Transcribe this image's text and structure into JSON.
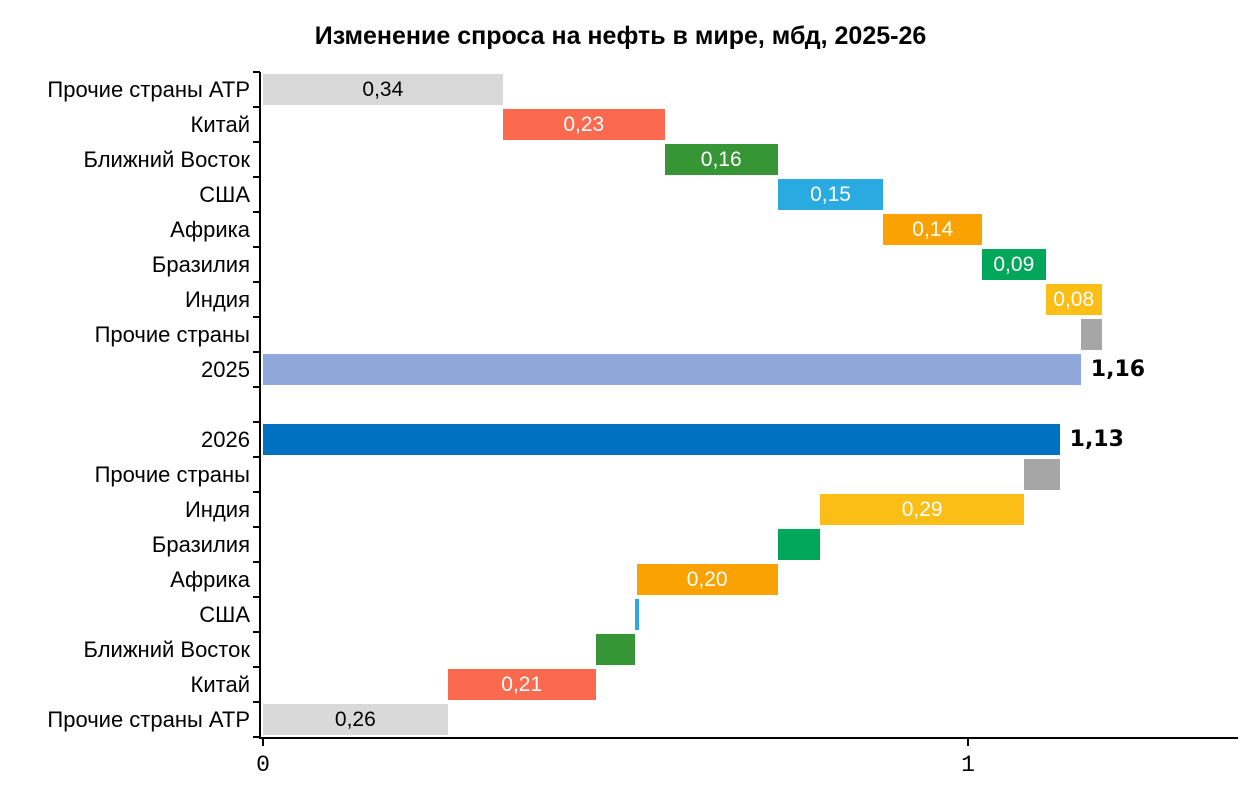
{
  "chart_data": {
    "type": "bar",
    "subtype": "horizontal-waterfall",
    "title": "Изменение спроса на нефть в мире, мбд, 2025-26",
    "units": "мбд",
    "xlim": [
      0,
      1.39
    ],
    "x_ticks": [
      0,
      1
    ],
    "x_tick_labels": [
      "0",
      "1"
    ],
    "grid": false,
    "legend": false,
    "sections": [
      "2025",
      "2026"
    ],
    "colors": {
      "other_apac": "#D9D9D9",
      "china": "#FB6A4F",
      "middle_east": "#369636",
      "usa": "#29ABE2",
      "africa": "#F9A201",
      "brazil": "#00A659",
      "india": "#FBBE17",
      "other_countries": "#A6A6A6",
      "total_2025": "#8FA8DC",
      "total_2026": "#0070C0",
      "axis": "#000000"
    },
    "rows": [
      {
        "name": "other-apac-2025",
        "label": "Прочие страны АТР",
        "start": 0,
        "end": 0.34,
        "value": 0.34,
        "display": "0,34",
        "color": "#D9D9D9",
        "text_color": "#000000"
      },
      {
        "name": "china-2025",
        "label": "Китай",
        "start": 0.34,
        "end": 0.57,
        "value": 0.23,
        "display": "0,23",
        "color": "#FB6A4F",
        "text_color": "#FFFFFF"
      },
      {
        "name": "middle-east-2025",
        "label": "Ближний Восток",
        "start": 0.57,
        "end": 0.73,
        "value": 0.16,
        "display": "0,16",
        "color": "#369636",
        "text_color": "#FFFFFF"
      },
      {
        "name": "usa-2025",
        "label": "США",
        "start": 0.73,
        "end": 0.88,
        "value": 0.15,
        "display": "0,15",
        "color": "#29ABE2",
        "text_color": "#FFFFFF"
      },
      {
        "name": "africa-2025",
        "label": "Африка",
        "start": 0.88,
        "end": 1.02,
        "value": 0.14,
        "display": "0,14",
        "color": "#F9A201",
        "text_color": "#FFFFFF"
      },
      {
        "name": "brazil-2025",
        "label": "Бразилия",
        "start": 1.02,
        "end": 1.11,
        "value": 0.09,
        "display": "0,09",
        "color": "#00A659",
        "text_color": "#FFFFFF"
      },
      {
        "name": "india-2025",
        "label": "Индия",
        "start": 1.11,
        "end": 1.19,
        "value": 0.08,
        "display": "0,08",
        "color": "#FBBE17",
        "text_color": "#FFFFFF"
      },
      {
        "name": "other-countries-2025",
        "label": "Прочие страны",
        "start": 1.16,
        "end": 1.19,
        "value": -0.03,
        "display": "",
        "color": "#A6A6A6",
        "text_color": "#FFFFFF"
      },
      {
        "name": "total-2025",
        "label": "2025",
        "start": 0,
        "end": 1.16,
        "value": 1.16,
        "display": "1,16",
        "color": "#8FA8DC",
        "total": true
      },
      {
        "name": "spacer",
        "label": "",
        "spacer": true
      },
      {
        "name": "total-2026",
        "label": "2026",
        "start": 0,
        "end": 1.13,
        "value": 1.13,
        "display": "1,13",
        "color": "#0070C0",
        "total": true
      },
      {
        "name": "other-countries-2026",
        "label": "Прочие страны",
        "start": 1.08,
        "end": 1.13,
        "value": 0.05,
        "display": "",
        "color": "#A6A6A6",
        "text_color": "#FFFFFF"
      },
      {
        "name": "india-2026",
        "label": "Индия",
        "start": 0.79,
        "end": 1.08,
        "value": 0.29,
        "display": "0,29",
        "color": "#FBBE17",
        "text_color": "#FFFFFF"
      },
      {
        "name": "brazil-2026",
        "label": "Бразилия",
        "start": 0.73,
        "end": 0.79,
        "value": 0.06,
        "display": "",
        "color": "#00A659",
        "text_color": "#FFFFFF"
      },
      {
        "name": "africa-2026",
        "label": "Африка",
        "start": 0.53,
        "end": 0.73,
        "value": 0.2,
        "display": "0,20",
        "color": "#F9A201",
        "text_color": "#FFFFFF"
      },
      {
        "name": "usa-2026",
        "label": "США",
        "start": 0.528,
        "end": 0.534,
        "value": 0.01,
        "display": "",
        "color": "#29ABE2",
        "text_color": "#FFFFFF"
      },
      {
        "name": "middle-east-2026",
        "label": "Ближний Восток",
        "start": 0.472,
        "end": 0.528,
        "value": 0.06,
        "display": "",
        "color": "#369636",
        "text_color": "#FFFFFF"
      },
      {
        "name": "china-2026",
        "label": "Китай",
        "start": 0.262,
        "end": 0.472,
        "value": 0.21,
        "display": "0,21",
        "color": "#FB6A4F",
        "text_color": "#FFFFFF"
      },
      {
        "name": "other-apac-2026",
        "label": "Прочие страны АТР",
        "start": 0,
        "end": 0.262,
        "value": 0.26,
        "display": "0,26",
        "color": "#D9D9D9",
        "text_color": "#000000"
      }
    ]
  }
}
